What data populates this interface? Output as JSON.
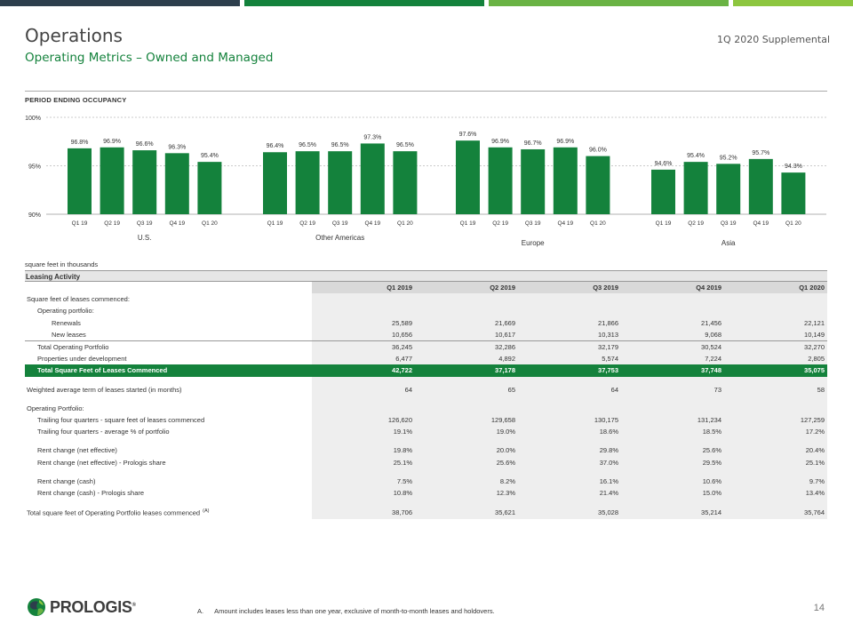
{
  "header": {
    "title": "Operations",
    "subtitle": "Operating Metrics – Owned and Managed",
    "supplemental": "1Q 2020 Supplemental"
  },
  "colors": {
    "brand_green": "#14823c",
    "bar_green": "#14823c",
    "topbar": [
      "#2d3e4c",
      "#4a8e5e",
      "#14823c",
      "#6ab344",
      "#8dc63f"
    ]
  },
  "occupancy": {
    "title": "PERIOD ENDING OCCUPANCY"
  },
  "chart_data": {
    "type": "bar",
    "title": "PERIOD ENDING OCCUPANCY",
    "ylim": [
      90,
      100
    ],
    "yticks": [
      "90%",
      "95%",
      "100%"
    ],
    "grid": true,
    "groups": [
      {
        "name": "U.S.",
        "categories": [
          "Q1 19",
          "Q2 19",
          "Q3 19",
          "Q4 19",
          "Q1 20"
        ],
        "values": [
          96.8,
          96.9,
          96.6,
          96.3,
          95.4
        ],
        "labels": [
          "96.8%",
          "96.9%",
          "96.6%",
          "96.3%",
          "95.4%"
        ]
      },
      {
        "name": "Other Americas",
        "categories": [
          "Q1 19",
          "Q2 19",
          "Q3 19",
          "Q4 19",
          "Q1 20"
        ],
        "values": [
          96.4,
          96.5,
          96.5,
          97.3,
          96.5
        ],
        "labels": [
          "96.4%",
          "96.5%",
          "96.5%",
          "97.3%",
          "96.5%"
        ]
      },
      {
        "name": "Europe",
        "categories": [
          "Q1 19",
          "Q2 19",
          "Q3 19",
          "Q4 19",
          "Q1 20"
        ],
        "values": [
          97.6,
          96.9,
          96.7,
          96.9,
          96.0
        ],
        "labels": [
          "97.6%",
          "96.9%",
          "96.7%",
          "96.9%",
          "96.0%"
        ]
      },
      {
        "name": "Asia",
        "categories": [
          "Q1 19",
          "Q2 19",
          "Q3 19",
          "Q4 19",
          "Q1 20"
        ],
        "values": [
          94.6,
          95.4,
          95.2,
          95.7,
          94.3
        ],
        "labels": [
          "94.6%",
          "95.4%",
          "95.2%",
          "95.7%",
          "94.3%"
        ]
      }
    ]
  },
  "table": {
    "units_note": "square feet in thousands",
    "section_title": "Leasing Activity",
    "columns": [
      "Q1 2019",
      "Q2 2019",
      "Q3 2019",
      "Q4 2019",
      "Q1 2020"
    ],
    "rows": [
      {
        "label": "Square feet of leases commenced:",
        "indent": 0,
        "values": [
          "",
          "",
          "",
          "",
          ""
        ]
      },
      {
        "label": "Operating portfolio:",
        "indent": 1,
        "values": [
          "",
          "",
          "",
          "",
          ""
        ]
      },
      {
        "label": "Renewals",
        "indent": 2,
        "values": [
          "25,589",
          "21,669",
          "21,866",
          "21,456",
          "22,121"
        ]
      },
      {
        "label": "New leases",
        "indent": 2,
        "values": [
          "10,656",
          "10,617",
          "10,313",
          "9,068",
          "10,149"
        ]
      },
      {
        "label": "Total Operating Portfolio",
        "indent": 1,
        "topline": true,
        "values": [
          "36,245",
          "32,286",
          "32,179",
          "30,524",
          "32,270"
        ]
      },
      {
        "label": "Properties under development",
        "indent": 1,
        "values": [
          "6,477",
          "4,892",
          "5,574",
          "7,224",
          "2,805"
        ]
      },
      {
        "label": "Total Square Feet of Leases Commenced",
        "indent": 1,
        "highlight": true,
        "values": [
          "42,722",
          "37,178",
          "37,753",
          "37,748",
          "35,075"
        ]
      },
      {
        "spacer": true
      },
      {
        "label": "Weighted average term of leases started (in months)",
        "indent": 0,
        "values": [
          "64",
          "65",
          "64",
          "73",
          "58"
        ]
      },
      {
        "spacer": true
      },
      {
        "label": "Operating Portfolio:",
        "indent": 0,
        "values": [
          "",
          "",
          "",
          "",
          ""
        ]
      },
      {
        "label": "Trailing four quarters - square feet of leases commenced",
        "indent": 1,
        "values": [
          "126,620",
          "129,658",
          "130,175",
          "131,234",
          "127,259"
        ]
      },
      {
        "label": "Trailing four quarters - average % of portfolio",
        "indent": 1,
        "values": [
          "19.1%",
          "19.0%",
          "18.6%",
          "18.5%",
          "17.2%"
        ]
      },
      {
        "spacer": true
      },
      {
        "label": "Rent change (net effective)",
        "indent": 1,
        "values": [
          "19.8%",
          "20.0%",
          "29.8%",
          "25.6%",
          "20.4%"
        ]
      },
      {
        "label": "Rent change (net effective) - Prologis share",
        "indent": 1,
        "values": [
          "25.1%",
          "25.6%",
          "37.0%",
          "29.5%",
          "25.1%"
        ]
      },
      {
        "spacer": true
      },
      {
        "label": "Rent change (cash)",
        "indent": 1,
        "values": [
          "7.5%",
          "8.2%",
          "16.1%",
          "10.6%",
          "9.7%"
        ]
      },
      {
        "label": "Rent change (cash) - Prologis share",
        "indent": 1,
        "values": [
          "10.8%",
          "12.3%",
          "21.4%",
          "15.0%",
          "13.4%"
        ]
      },
      {
        "spacer": true
      },
      {
        "label": "Total square feet of Operating Portfolio leases commenced",
        "superscript": "(A)",
        "indent": 0,
        "values": [
          "38,706",
          "35,621",
          "35,028",
          "35,214",
          "35,764"
        ]
      }
    ]
  },
  "footer": {
    "footnote_marker": "A.",
    "footnote_text": "Amount includes leases less than one year, exclusive of month-to-month leases and holdovers.",
    "page_number": "14",
    "logo_text": "PROLOGIS",
    "logo_mark": "®"
  }
}
